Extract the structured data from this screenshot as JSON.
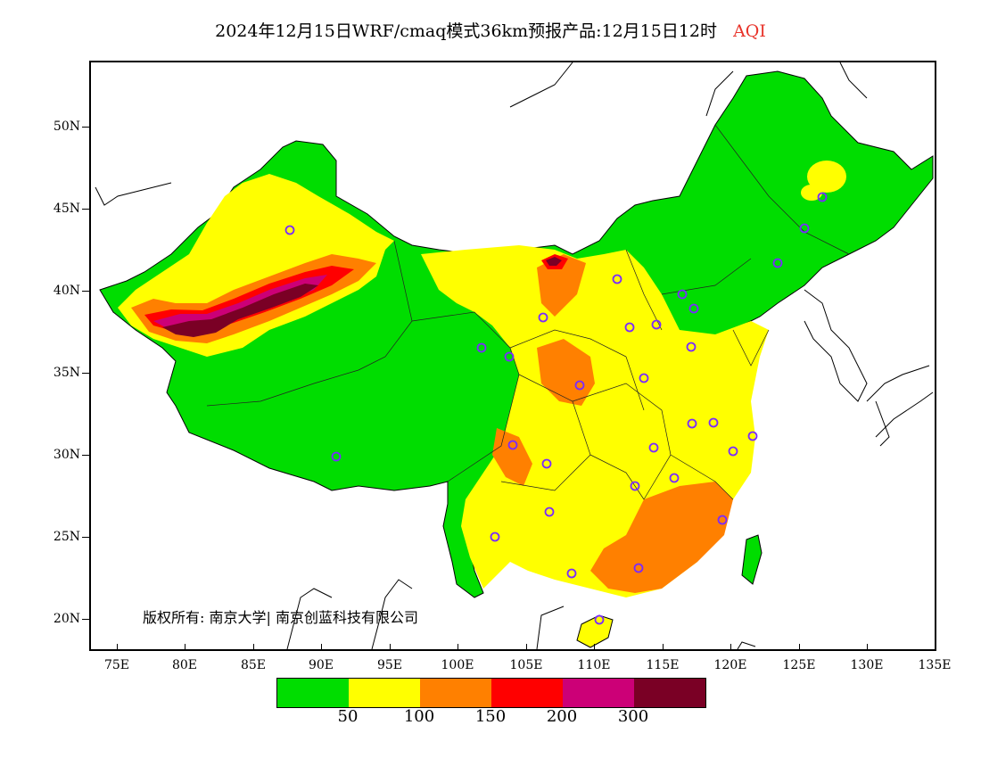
{
  "title": {
    "main": "2024年12月15日WRF/cmaq模式36km预报产品:12月15日12时",
    "variable": "AQI"
  },
  "axes": {
    "y_ticks": [
      "50N",
      "45N",
      "40N",
      "35N",
      "30N",
      "25N",
      "20N"
    ],
    "x_ticks": [
      "75E",
      "80E",
      "85E",
      "90E",
      "95E",
      "100E",
      "105E",
      "110E",
      "115E",
      "120E",
      "125E",
      "130E",
      "135E"
    ]
  },
  "copyright": "版权所有: 南京大学| 南京创蓝科技有限公司",
  "legend": {
    "colors": [
      "#00dd00",
      "#ffff00",
      "#ff8000",
      "#ff0000",
      "#cc0077",
      "#7a0025"
    ],
    "labels": [
      "50",
      "100",
      "150",
      "200",
      "300"
    ]
  },
  "map": {
    "extent": {
      "lon_min": 73,
      "lon_max": 135,
      "lat_min": 18,
      "lat_max": 54
    },
    "city_marker_color": "#7a2aff"
  }
}
